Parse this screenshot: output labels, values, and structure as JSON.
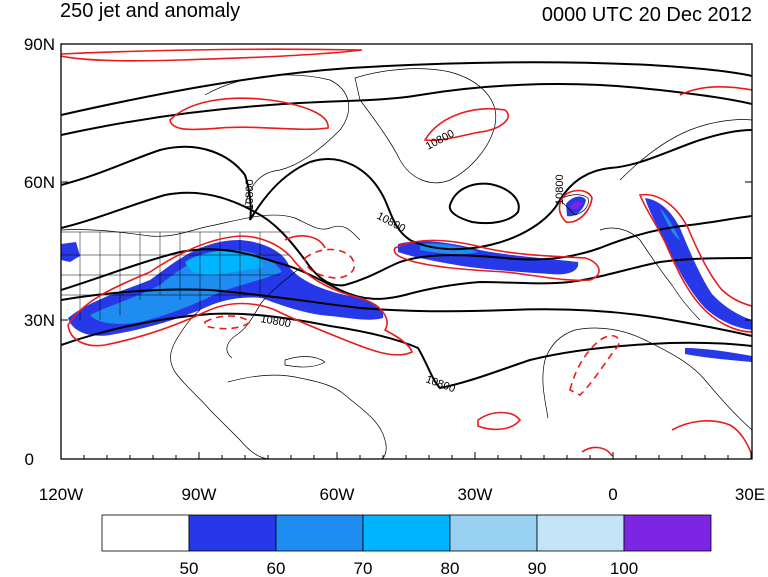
{
  "title_left": "250 jet and anomaly",
  "title_right": "0000 UTC 20 Dec 2012",
  "lat_labels": [
    "90N",
    "60N",
    "30N",
    "0"
  ],
  "lon_labels": [
    "120W",
    "90W",
    "60W",
    "30W",
    "0",
    "30E"
  ],
  "contour_labels": [
    "10800",
    "10800",
    "10800",
    "10800",
    "10800",
    "10800"
  ],
  "colorbar": {
    "labels": [
      "50",
      "60",
      "70",
      "80",
      "90",
      "100"
    ],
    "colors": [
      "#ffffff",
      "#2638e8",
      "#1e8cf0",
      "#00b4ff",
      "#99d1f2",
      "#c4e3f6",
      "#7c26e4"
    ]
  },
  "line_colors": {
    "height": "#000000",
    "anomaly": "#e81c1c",
    "boundaries": "#000000"
  }
}
